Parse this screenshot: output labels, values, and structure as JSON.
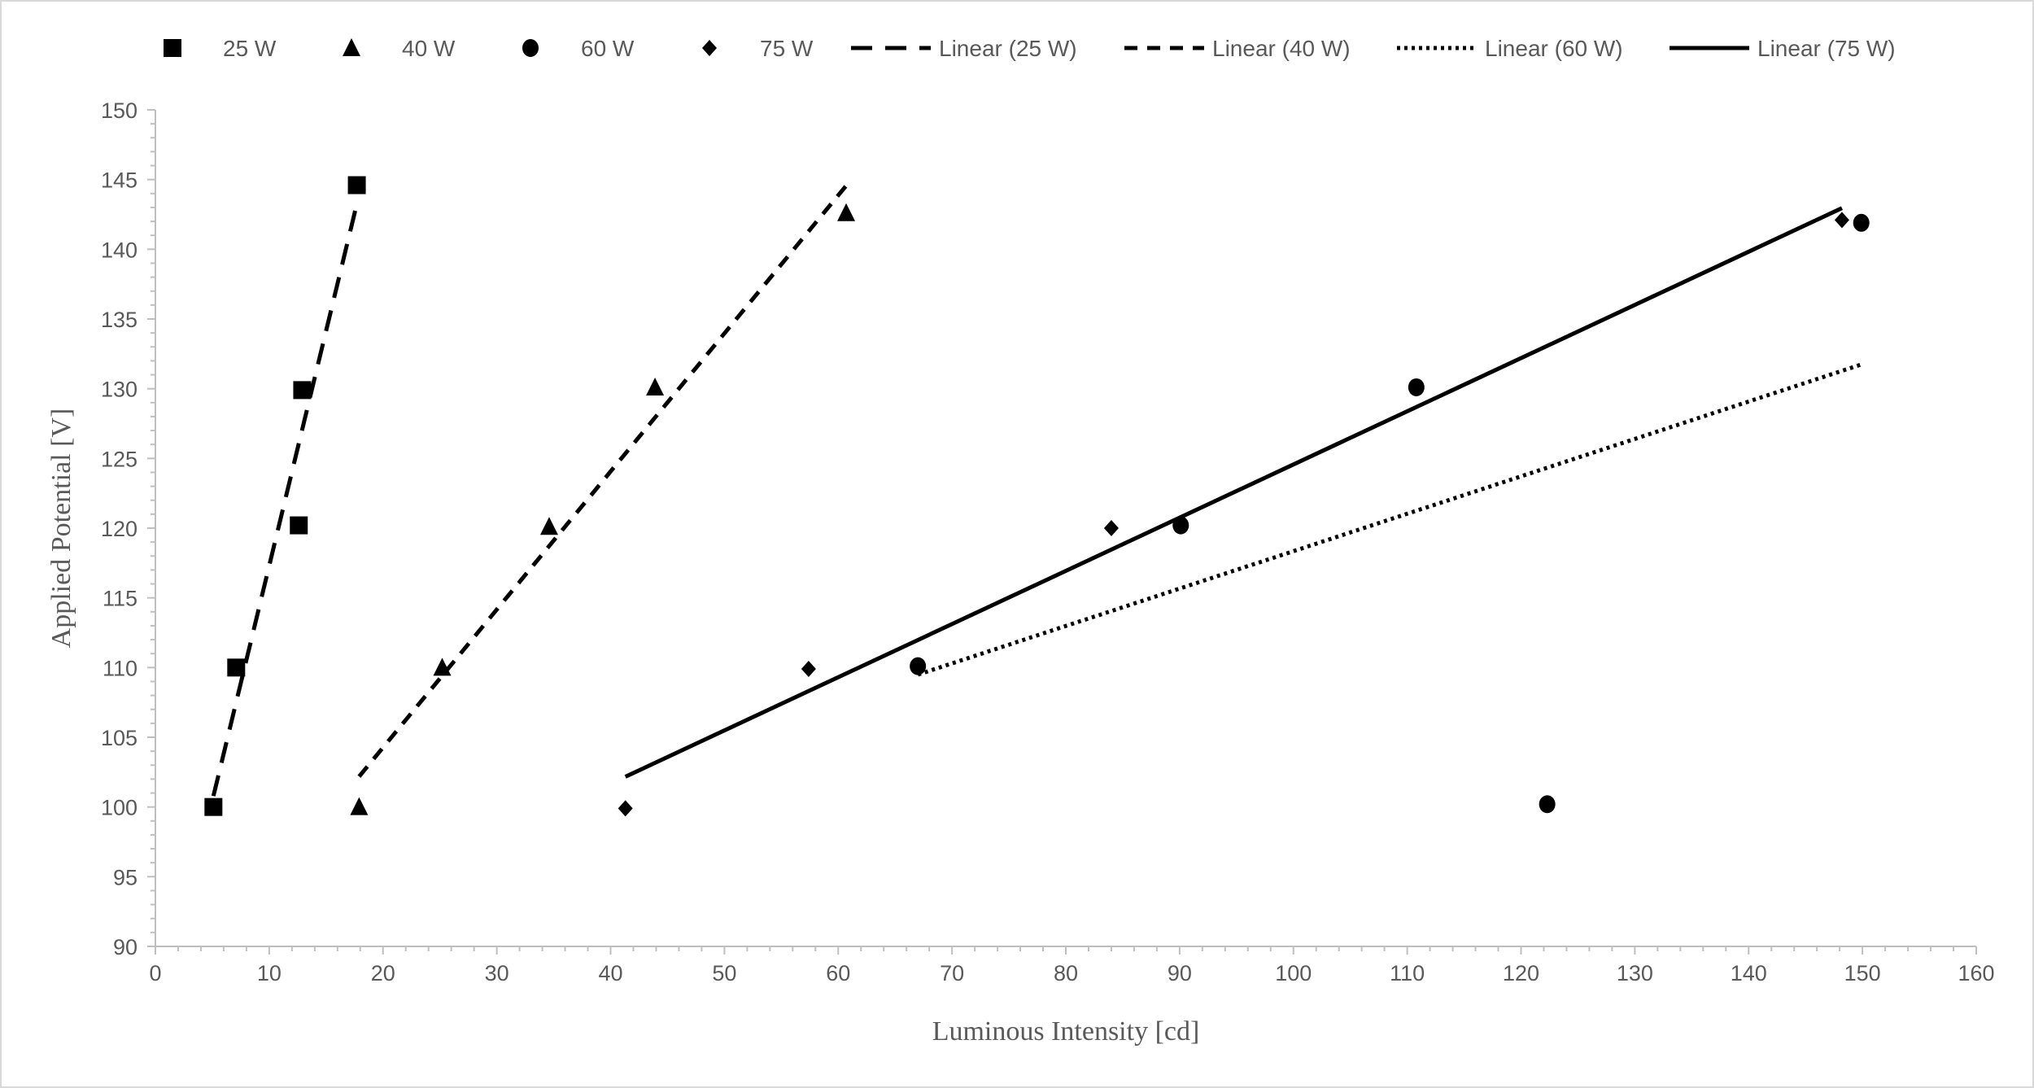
{
  "chart_data": {
    "type": "scatter",
    "title": "",
    "xlabel": "Luminous Intensity [cd]",
    "ylabel": "Applied Potential [V]",
    "xlim": [
      0,
      160
    ],
    "ylim": [
      90,
      150
    ],
    "xticks": [
      0,
      10,
      20,
      30,
      40,
      50,
      60,
      70,
      80,
      90,
      100,
      110,
      120,
      130,
      140,
      150,
      160
    ],
    "yticks": [
      90,
      95,
      100,
      105,
      110,
      115,
      120,
      125,
      130,
      135,
      140,
      145,
      150
    ],
    "grid": false,
    "legend_position": "top",
    "series": [
      {
        "name": "25 W",
        "marker": "square",
        "x": [
          5.1,
          7.1,
          12.6,
          12.9,
          17.7
        ],
        "y": [
          100,
          110,
          120.2,
          129.9,
          144.6
        ]
      },
      {
        "name": "40 W",
        "marker": "triangle",
        "x": [
          17.9,
          25.2,
          34.6,
          43.9,
          60.7
        ],
        "y": [
          100,
          110,
          120.1,
          130.1,
          142.6
        ]
      },
      {
        "name": "60 W",
        "marker": "circle",
        "x": [
          67.0,
          90.1,
          110.8,
          122.3,
          149.9
        ],
        "y": [
          110.1,
          120.2,
          130.1,
          100.2,
          141.9
        ]
      },
      {
        "name": "75 W",
        "marker": "diamond",
        "x": [
          41.3,
          57.4,
          84.0,
          148.2
        ],
        "y": [
          99.9,
          109.9,
          120.0,
          142.1
        ]
      }
    ],
    "trendlines": [
      {
        "name": "Linear (25 W)",
        "of": "25 W",
        "type": "linear",
        "style": "long-dash"
      },
      {
        "name": "Linear (40 W)",
        "of": "40 W",
        "type": "linear",
        "style": "dash"
      },
      {
        "name": "Linear (60 W)",
        "of": "60 W",
        "type": "linear",
        "style": "dotted"
      },
      {
        "name": "Linear (75 W)",
        "of": "75 W",
        "type": "linear",
        "style": "solid"
      }
    ],
    "colors": {
      "marks": "#000000",
      "axis": "#bfbfbf",
      "text": "#595959",
      "border": "#d9d9d9"
    }
  }
}
